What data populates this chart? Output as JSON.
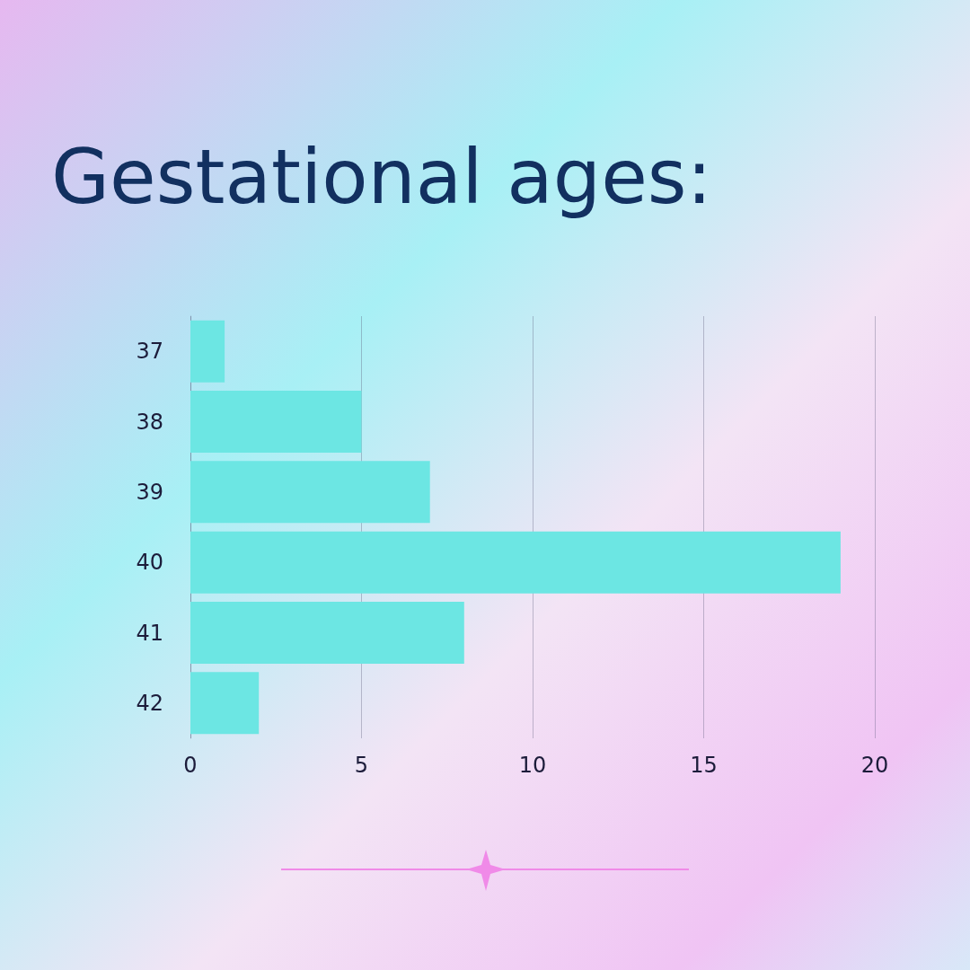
{
  "chart_data": {
    "type": "bar",
    "orientation": "horizontal",
    "title": "Gestational ages:",
    "categories": [
      "37",
      "38",
      "39",
      "40",
      "41",
      "42"
    ],
    "values": [
      1,
      5,
      7,
      19,
      8,
      2
    ],
    "color": "#6ce6e3",
    "xlim": [
      0,
      20
    ],
    "xticks": [
      0,
      5,
      10,
      15,
      20
    ],
    "grid": "x"
  }
}
